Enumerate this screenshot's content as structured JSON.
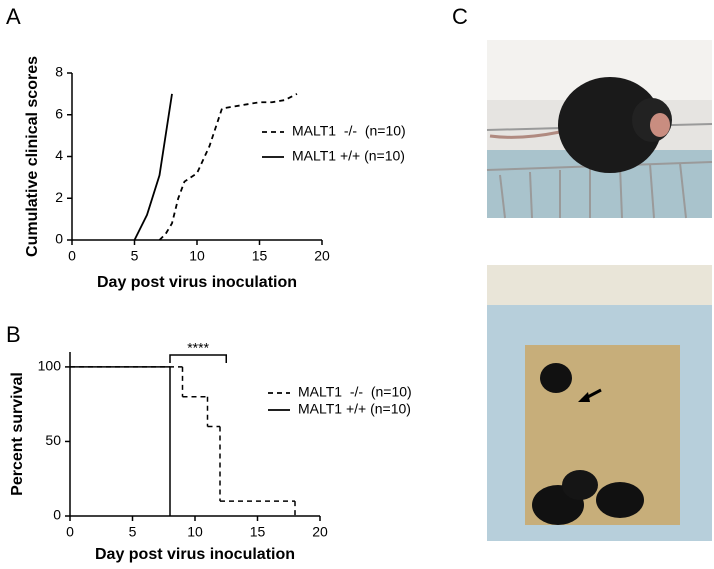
{
  "chart_data": [
    {
      "type": "line",
      "panel": "A",
      "x_label": "Day post virus inoculation",
      "y_label": "Cumulative clinical scores",
      "xlim": [
        0,
        20
      ],
      "xticks": [
        0,
        5,
        10,
        15,
        20
      ],
      "ylim": [
        0,
        8
      ],
      "yticks": [
        0,
        2,
        4,
        6,
        8
      ],
      "series": [
        {
          "name": "MALT1  -/-  (n=10)",
          "color": "#000000",
          "line_style": "dashed",
          "x": [
            7,
            7.5,
            8,
            8.5,
            9,
            10,
            11,
            12,
            13,
            14,
            15,
            16,
            17,
            18
          ],
          "values": [
            0,
            0.3,
            0.8,
            2,
            2.8,
            3.2,
            4.5,
            6.3,
            6.4,
            6.5,
            6.6,
            6.6,
            6.7,
            7.0
          ]
        },
        {
          "name": "MALT1 +/+ (n=10)",
          "color": "#000000",
          "line_style": "solid",
          "x": [
            5,
            6,
            7,
            8
          ],
          "values": [
            0,
            1.2,
            3.1,
            7.0
          ]
        }
      ]
    },
    {
      "type": "step",
      "panel": "B",
      "x_label": "Day post virus inoculation",
      "y_label": "Percent survival",
      "xlim": [
        0,
        20
      ],
      "xticks": [
        0,
        5,
        10,
        15,
        20
      ],
      "ylim": [
        0,
        110
      ],
      "yticks": [
        0,
        50,
        100
      ],
      "significance": {
        "label": "****",
        "x": [
          8,
          12.5
        ]
      },
      "series": [
        {
          "name": "MALT1  -/-  (n=10)",
          "color": "#000000",
          "line_style": "dashed",
          "x": [
            0,
            9,
            11,
            12,
            18
          ],
          "values": [
            100,
            80,
            60,
            10,
            0
          ]
        },
        {
          "name": "MALT1 +/+ (n=10)",
          "color": "#000000",
          "line_style": "solid",
          "x": [
            0,
            8
          ],
          "values": [
            100,
            0
          ]
        }
      ]
    }
  ],
  "photo_panel": {
    "label": "C"
  }
}
